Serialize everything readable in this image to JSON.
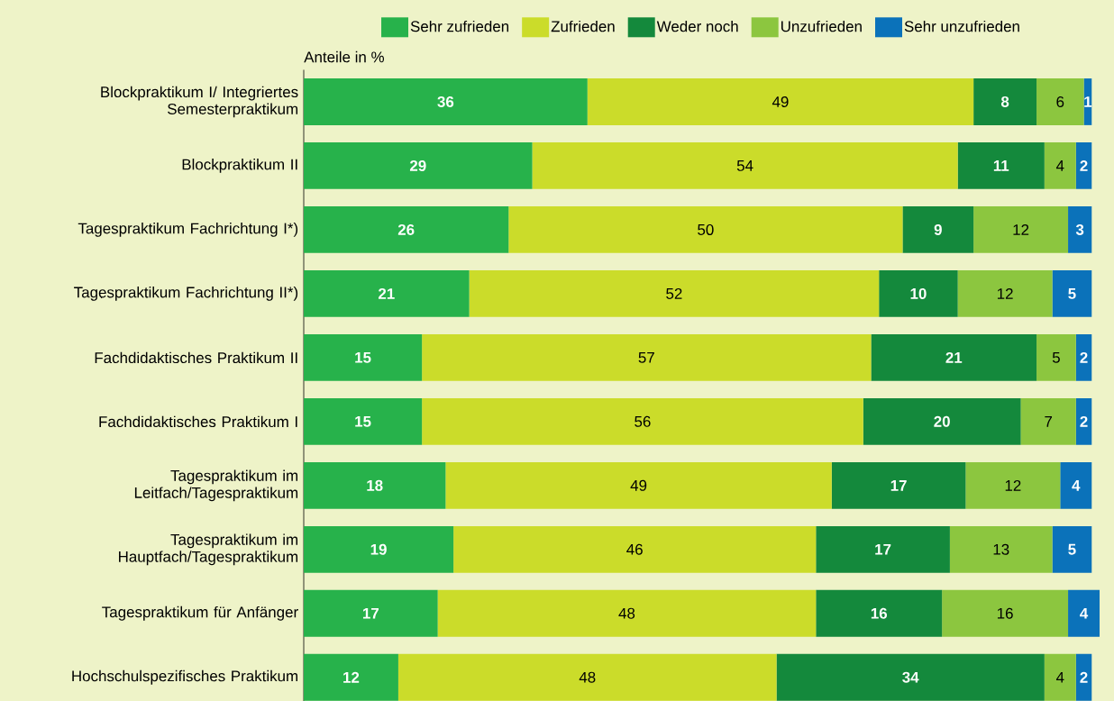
{
  "chart_data": {
    "type": "bar",
    "orientation": "horizontal",
    "stacked": true,
    "data_labels": true,
    "legend": "top",
    "subtitle": "Anteile in %",
    "tick_labels": "y",
    "categories": [
      "Blockpraktikum I/ Integriertes Semesterpraktikum",
      "Blockpraktikum II",
      "Tagespraktikum Fachrichtung I*)",
      "Tagespraktikum Fachrichtung II*)",
      "Fachdidaktisches Praktikum II",
      "Fachdidaktisches Praktikum I",
      "Tagespraktikum im Leitfach/Tagespraktikum",
      "Tagespraktikum im Hauptfach/Tagespraktikum",
      "Tagespraktikum für Anfänger",
      "Hochschulspezifisches Praktikum"
    ],
    "series": [
      {
        "name": "Sehr zufrieden",
        "color": "#27b24b",
        "values": [
          36,
          29,
          26,
          21,
          15,
          15,
          18,
          19,
          17,
          12
        ]
      },
      {
        "name": "Zufrieden",
        "color": "#cbdc2a",
        "values": [
          49,
          54,
          50,
          52,
          57,
          56,
          49,
          46,
          48,
          48
        ]
      },
      {
        "name": "Weder noch",
        "color": "#14893c",
        "values": [
          8,
          11,
          9,
          10,
          21,
          20,
          17,
          17,
          16,
          34
        ]
      },
      {
        "name": "Unzufrieden",
        "color": "#8cc63f",
        "values": [
          6,
          4,
          12,
          12,
          5,
          7,
          12,
          13,
          16,
          4
        ]
      },
      {
        "name": "Sehr unzufrieden",
        "color": "#0b72ba",
        "values": [
          1,
          2,
          3,
          5,
          2,
          2,
          4,
          5,
          4,
          2
        ]
      }
    ]
  }
}
